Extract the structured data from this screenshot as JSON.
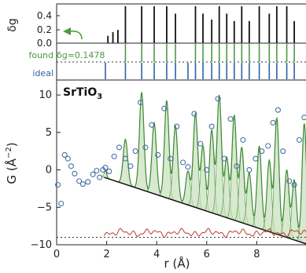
{
  "chart_data": [
    {
      "panel": "top",
      "type": "bar",
      "ylabel": "δg",
      "yticks": [
        "0.4",
        "0.2",
        "0.0"
      ],
      "ylim": [
        0,
        0.5
      ],
      "delta_g_bars": [
        {
          "r": 2.05,
          "v": 0.1
        },
        {
          "r": 2.25,
          "v": 0.15
        },
        {
          "r": 2.45,
          "v": 0.18
        },
        {
          "r": 2.75,
          "v": 0.5
        },
        {
          "r": 3.4,
          "v": 0.5
        },
        {
          "r": 3.9,
          "v": 0.5
        },
        {
          "r": 4.4,
          "v": 0.5
        },
        {
          "r": 4.75,
          "v": 0.4
        },
        {
          "r": 5.55,
          "v": 0.5
        },
        {
          "r": 5.85,
          "v": 0.4
        },
        {
          "r": 6.2,
          "v": 0.32
        },
        {
          "r": 6.5,
          "v": 0.5
        },
        {
          "r": 6.8,
          "v": 0.4
        },
        {
          "r": 7.1,
          "v": 0.3
        },
        {
          "r": 7.4,
          "v": 0.5
        },
        {
          "r": 7.7,
          "v": 0.3
        },
        {
          "r": 8.1,
          "v": 0.5
        },
        {
          "r": 8.5,
          "v": 0.4
        },
        {
          "r": 8.8,
          "v": 0.5
        },
        {
          "r": 9.2,
          "v": 0.5
        },
        {
          "r": 9.5,
          "v": 0.3
        }
      ],
      "found_label": "found",
      "ideal_label": "ideal",
      "annotation": "δg=0.1478",
      "threshold": 0.1478,
      "found_lines_r": [
        2.75,
        3.4,
        3.9,
        4.4,
        4.75,
        5.55,
        5.85,
        6.2,
        6.5,
        6.8,
        7.1,
        7.4,
        7.7,
        8.1,
        8.5,
        8.8,
        9.2,
        9.5
      ],
      "ideal_lines_r": [
        1.95,
        2.75,
        3.4,
        3.9,
        4.4,
        4.75,
        5.25,
        5.55,
        5.85,
        6.2,
        6.5,
        6.8,
        7.1,
        7.4,
        7.7,
        8.1,
        8.5,
        8.8,
        9.2,
        9.5
      ],
      "colors": {
        "bar": "#111111",
        "found": "#4e9a3f",
        "ideal": "#2e5fa8"
      }
    },
    {
      "panel": "main",
      "type": "line",
      "title": "SrTiO",
      "title_sub": "3",
      "xlabel": "r (Å)",
      "ylabel_main": "G (Å",
      "ylabel_exp": "−2",
      "ylabel_close": ")",
      "xlim": [
        0,
        10
      ],
      "ylim": [
        -10,
        12
      ],
      "xticks": [
        "0",
        "2",
        "4",
        "6",
        "8"
      ],
      "yticks": [
        "10",
        "5",
        "0",
        "−5",
        "−10"
      ],
      "fit_range": [
        1.9,
        10
      ],
      "baseline_slope": -4.0,
      "difference_offset": -9.0,
      "observed_points": [
        {
          "r": 0.05,
          "G": -2.0
        },
        {
          "r": 0.18,
          "G": -4.5
        },
        {
          "r": 0.32,
          "G": 2.0
        },
        {
          "r": 0.45,
          "G": 1.5
        },
        {
          "r": 0.58,
          "G": 0.5
        },
        {
          "r": 0.72,
          "G": -0.5
        },
        {
          "r": 0.9,
          "G": -1.5
        },
        {
          "r": 1.05,
          "G": -1.9
        },
        {
          "r": 1.25,
          "G": -1.6
        },
        {
          "r": 1.45,
          "G": -0.6
        },
        {
          "r": 1.6,
          "G": -0.1
        },
        {
          "r": 1.72,
          "G": -1.0
        },
        {
          "r": 1.85,
          "G": 0.0
        },
        {
          "r": 1.95,
          "G": 0.3
        },
        {
          "r": 2.1,
          "G": -0.2
        },
        {
          "r": 2.3,
          "G": 1.8
        },
        {
          "r": 2.5,
          "G": 3.0
        },
        {
          "r": 2.75,
          "G": 1.5
        },
        {
          "r": 2.95,
          "G": 0.5
        },
        {
          "r": 3.15,
          "G": 2.5
        },
        {
          "r": 3.35,
          "G": 9.0
        },
        {
          "r": 3.55,
          "G": 3.0
        },
        {
          "r": 3.8,
          "G": 6.0
        },
        {
          "r": 4.05,
          "G": 2.0
        },
        {
          "r": 4.3,
          "G": 8.2
        },
        {
          "r": 4.55,
          "G": 1.5
        },
        {
          "r": 4.8,
          "G": 5.8
        },
        {
          "r": 5.05,
          "G": 1.0
        },
        {
          "r": 5.25,
          "G": 0.4
        },
        {
          "r": 5.5,
          "G": 7.5
        },
        {
          "r": 5.75,
          "G": 3.5
        },
        {
          "r": 6.0,
          "G": 0.0
        },
        {
          "r": 6.2,
          "G": 5.8
        },
        {
          "r": 6.45,
          "G": 9.5
        },
        {
          "r": 6.7,
          "G": 1.5
        },
        {
          "r": 6.95,
          "G": 6.8
        },
        {
          "r": 7.2,
          "G": 0.5
        },
        {
          "r": 7.45,
          "G": 4.0
        },
        {
          "r": 7.7,
          "G": 0.0
        },
        {
          "r": 7.95,
          "G": 1.5
        },
        {
          "r": 8.2,
          "G": 2.5
        },
        {
          "r": 8.45,
          "G": 3.2
        },
        {
          "r": 8.65,
          "G": 6.3
        },
        {
          "r": 8.85,
          "G": 8.0
        },
        {
          "r": 9.05,
          "G": 2.5
        },
        {
          "r": 9.3,
          "G": -1.5
        },
        {
          "r": 9.5,
          "G": -2.0
        },
        {
          "r": 9.7,
          "G": 4.0
        },
        {
          "r": 9.9,
          "G": 7.0
        }
      ],
      "peaks": [
        {
          "r": 1.95,
          "h": 1.0,
          "w": 0.05
        },
        {
          "r": 2.75,
          "h": 6.0,
          "w": 0.09
        },
        {
          "r": 3.4,
          "h": 13.0,
          "w": 0.09
        },
        {
          "r": 3.9,
          "h": 9.5,
          "w": 0.09
        },
        {
          "r": 4.4,
          "h": 13.0,
          "w": 0.09
        },
        {
          "r": 4.75,
          "h": 10.0,
          "w": 0.09
        },
        {
          "r": 5.25,
          "h": 4.5,
          "w": 0.09
        },
        {
          "r": 5.55,
          "h": 12.5,
          "w": 0.09
        },
        {
          "r": 5.85,
          "h": 8.5,
          "w": 0.09
        },
        {
          "r": 6.2,
          "h": 11.0,
          "w": 0.09
        },
        {
          "r": 6.5,
          "h": 16.0,
          "w": 0.09
        },
        {
          "r": 6.8,
          "h": 8.0,
          "w": 0.09
        },
        {
          "r": 7.1,
          "h": 14.0,
          "w": 0.09
        },
        {
          "r": 7.4,
          "h": 10.0,
          "w": 0.09
        },
        {
          "r": 7.7,
          "h": 7.0,
          "w": 0.09
        },
        {
          "r": 8.1,
          "h": 11.0,
          "w": 0.09
        },
        {
          "r": 8.5,
          "h": 9.5,
          "w": 0.09
        },
        {
          "r": 8.8,
          "h": 15.5,
          "w": 0.09
        },
        {
          "r": 9.2,
          "h": 9.0,
          "w": 0.09
        },
        {
          "r": 9.5,
          "h": 8.0,
          "w": 0.09
        },
        {
          "r": 9.9,
          "h": 16.0,
          "w": 0.09
        }
      ],
      "colors": {
        "observed": "#4a6fa5",
        "fit": "#3e8a35",
        "peak_fill": "#c8e0bc",
        "peak_stroke": "#5aa04a",
        "baseline": "#111111",
        "difference": "#c0392b",
        "dotted": "#333333"
      }
    }
  ]
}
